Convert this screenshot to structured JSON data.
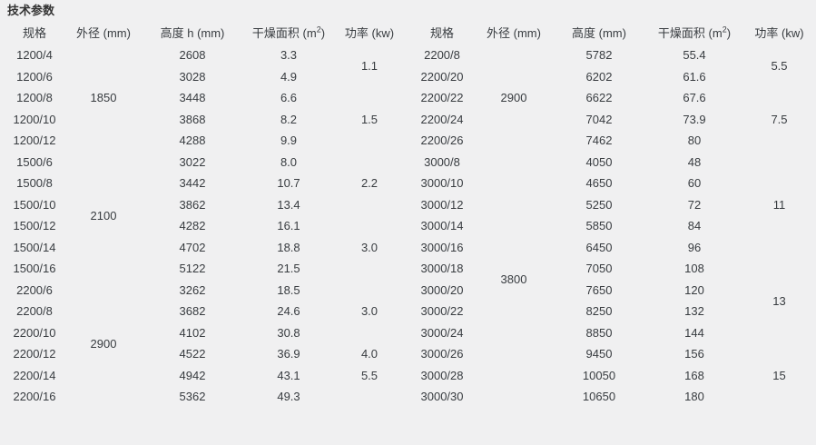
{
  "page": {
    "title": "技术参数"
  },
  "colors": {
    "background": "#f0f0f1",
    "text": "#383c40",
    "title": "#333333"
  },
  "tables": [
    {
      "id": "left",
      "headers": [
        {
          "t": "规格"
        },
        {
          "t": "外径 (mm)"
        },
        {
          "t": "高度 h (mm)"
        },
        {
          "t": "干燥面积 (m",
          "sup": "2",
          "suffix": ")"
        },
        {
          "t": "功率 (kw)"
        }
      ],
      "rows": [
        [
          {
            "t": "1200/4"
          },
          {
            "t": "1850",
            "rs": 5
          },
          {
            "t": "2608"
          },
          {
            "t": "3.3"
          },
          {
            "t": "1.1",
            "rs": 2
          }
        ],
        [
          {
            "t": "1200/6"
          },
          {
            "t": "3028"
          },
          {
            "t": "4.9"
          }
        ],
        [
          {
            "t": "1200/8"
          },
          {
            "t": "3448"
          },
          {
            "t": "6.6"
          },
          {
            "t": "1.5",
            "rs": 3
          }
        ],
        [
          {
            "t": "1200/10"
          },
          {
            "t": "3868"
          },
          {
            "t": "8.2"
          }
        ],
        [
          {
            "t": "1200/12"
          },
          {
            "t": "4288"
          },
          {
            "t": "9.9"
          }
        ],
        [
          {
            "t": "1500/6"
          },
          {
            "t": "2100",
            "rs": 6
          },
          {
            "t": "3022"
          },
          {
            "t": "8.0"
          },
          {
            "t": "2.2",
            "rs": 3
          }
        ],
        [
          {
            "t": "1500/8"
          },
          {
            "t": "3442"
          },
          {
            "t": "10.7"
          }
        ],
        [
          {
            "t": "1500/10"
          },
          {
            "t": "3862"
          },
          {
            "t": "13.4"
          }
        ],
        [
          {
            "t": "1500/12"
          },
          {
            "t": "4282"
          },
          {
            "t": "16.1"
          },
          {
            "t": "3.0",
            "rs": 3
          }
        ],
        [
          {
            "t": "1500/14"
          },
          {
            "t": "4702"
          },
          {
            "t": "18.8"
          }
        ],
        [
          {
            "t": "1500/16"
          },
          {
            "t": "5122"
          },
          {
            "t": "21.5"
          }
        ],
        [
          {
            "t": "2200/6"
          },
          {
            "t": "2900",
            "rs": 6
          },
          {
            "t": "3262"
          },
          {
            "t": "18.5"
          },
          {
            "t": "3.0",
            "rs": 3
          }
        ],
        [
          {
            "t": "2200/8"
          },
          {
            "t": "3682"
          },
          {
            "t": "24.6"
          }
        ],
        [
          {
            "t": "2200/10"
          },
          {
            "t": "4102"
          },
          {
            "t": "30.8"
          }
        ],
        [
          {
            "t": "2200/12"
          },
          {
            "t": "4522"
          },
          {
            "t": "36.9"
          },
          {
            "t": "4.0"
          }
        ],
        [
          {
            "t": "2200/14"
          },
          {
            "t": "4942"
          },
          {
            "t": "43.1"
          },
          {
            "t": "5.5"
          }
        ],
        [
          {
            "t": "2200/16"
          },
          {
            "t": "5362"
          },
          {
            "t": "49.3"
          },
          {
            "t": ""
          }
        ]
      ]
    },
    {
      "id": "right",
      "headers": [
        {
          "t": "规格"
        },
        {
          "t": "外径 (mm)"
        },
        {
          "t": "高度 (mm)"
        },
        {
          "t": "干燥面积 (m",
          "sup": "2",
          "suffix": ")"
        },
        {
          "t": "功率 (kw)"
        }
      ],
      "rows": [
        [
          {
            "t": "2200/8"
          },
          {
            "t": "2900",
            "rs": 5
          },
          {
            "t": "5782"
          },
          {
            "t": "55.4"
          },
          {
            "t": "5.5",
            "rs": 2
          }
        ],
        [
          {
            "t": "2200/20"
          },
          {
            "t": "6202"
          },
          {
            "t": "61.6"
          }
        ],
        [
          {
            "t": "2200/22"
          },
          {
            "t": "6622"
          },
          {
            "t": "67.6"
          },
          {
            "t": "7.5",
            "rs": 3
          }
        ],
        [
          {
            "t": "2200/24"
          },
          {
            "t": "7042"
          },
          {
            "t": "73.9"
          }
        ],
        [
          {
            "t": "2200/26"
          },
          {
            "t": "7462"
          },
          {
            "t": "80"
          }
        ],
        [
          {
            "t": "3000/8"
          },
          {
            "t": "3800",
            "rs": 12
          },
          {
            "t": "4050"
          },
          {
            "t": "48"
          },
          {
            "t": "11",
            "rs": 5
          }
        ],
        [
          {
            "t": "3000/10"
          },
          {
            "t": "4650"
          },
          {
            "t": "60"
          }
        ],
        [
          {
            "t": "3000/12"
          },
          {
            "t": "5250"
          },
          {
            "t": "72"
          }
        ],
        [
          {
            "t": "3000/14"
          },
          {
            "t": "5850"
          },
          {
            "t": "84"
          }
        ],
        [
          {
            "t": "3000/16"
          },
          {
            "t": "6450"
          },
          {
            "t": "96"
          }
        ],
        [
          {
            "t": "3000/18"
          },
          {
            "t": "7050"
          },
          {
            "t": "108"
          },
          {
            "t": "13",
            "rs": 4
          }
        ],
        [
          {
            "t": "3000/20"
          },
          {
            "t": "7650"
          },
          {
            "t": "120"
          }
        ],
        [
          {
            "t": "3000/22"
          },
          {
            "t": "8250"
          },
          {
            "t": "132"
          }
        ],
        [
          {
            "t": "3000/24"
          },
          {
            "t": "8850"
          },
          {
            "t": "144"
          }
        ],
        [
          {
            "t": "3000/26"
          },
          {
            "t": "9450"
          },
          {
            "t": "156"
          },
          {
            "t": "15",
            "rs": 3
          }
        ],
        [
          {
            "t": "3000/28"
          },
          {
            "t": "10050"
          },
          {
            "t": "168"
          }
        ],
        [
          {
            "t": "3000/30"
          },
          {
            "t": "10650"
          },
          {
            "t": "180"
          }
        ]
      ]
    }
  ]
}
